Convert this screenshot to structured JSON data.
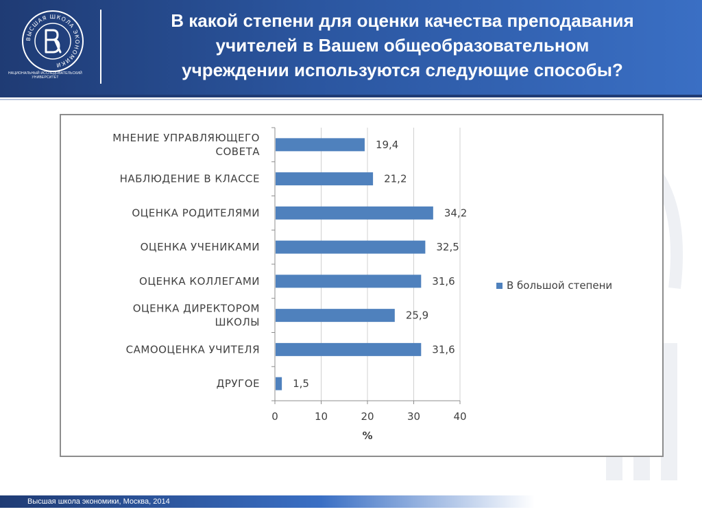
{
  "header": {
    "title_lines": [
      "В какой степени  для оценки качества преподавания",
      "учителей в Вашем общеобразовательном",
      "учреждении используются следующие способы?"
    ],
    "logo_ring_text": "ВЫСШАЯ ШКОЛА ЭКОНОМИКИ",
    "logo_caption_line1": "НАЦИОНАЛЬНЫЙ ИССЛЕДОВАТЕЛЬСКИЙ",
    "logo_caption_line2": "УНИВЕРСИТЕТ"
  },
  "footer": {
    "text": "Высшая школа экономики, Москва, 2014"
  },
  "colors": {
    "header_bg": "#2b56a0",
    "bar": "#4f81bd",
    "axis": "#8c8c8c"
  },
  "chart_data": {
    "type": "bar",
    "orientation": "horizontal",
    "categories": [
      "МНЕНИЕ УПРАВЛЯЮЩЕГО СОВЕТА",
      "НАБЛЮДЕНИЕ В КЛАССЕ",
      "ОЦЕНКА РОДИТЕЛЯМИ",
      "ОЦЕНКА УЧЕНИКАМИ",
      "ОЦЕНКА КОЛЛЕГАМИ",
      "ОЦЕНКА ДИРЕКТОРОМ ШКОЛЫ",
      "САМООЦЕНКА УЧИТЕЛЯ",
      "ДРУГОЕ"
    ],
    "category_lines": [
      [
        "МНЕНИЕ УПРАВЛЯЮЩЕГО",
        "СОВЕТА"
      ],
      [
        "НАБЛЮДЕНИЕ В КЛАССЕ"
      ],
      [
        "ОЦЕНКА РОДИТЕЛЯМИ"
      ],
      [
        "ОЦЕНКА УЧЕНИКАМИ"
      ],
      [
        "ОЦЕНКА КОЛЛЕГАМИ"
      ],
      [
        "ОЦЕНКА ДИРЕКТОРОМ",
        "ШКОЛЫ"
      ],
      [
        "САМООЦЕНКА УЧИТЕЛЯ"
      ],
      [
        "ДРУГОЕ"
      ]
    ],
    "series": [
      {
        "name": "В большой степени",
        "values": [
          19.4,
          21.2,
          34.2,
          32.5,
          31.6,
          25.9,
          31.6,
          1.5
        ],
        "labels": [
          "19,4",
          "21,2",
          "34,2",
          "32,5",
          "31,6",
          "25,9",
          "31,6",
          "1,5"
        ]
      }
    ],
    "xlim": [
      0,
      40
    ],
    "xticks": [
      0,
      10,
      20,
      30,
      40
    ],
    "xlabel": "%",
    "grid": true,
    "legend_position": "right"
  }
}
